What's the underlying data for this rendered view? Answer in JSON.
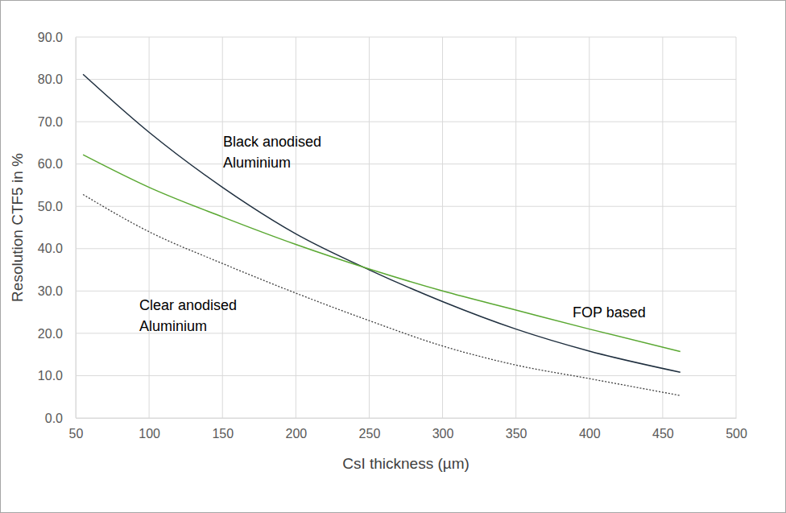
{
  "chart_data": {
    "type": "line",
    "x_label": "CsI thickness (µm)",
    "y_label": "Resolution CTF5 in %",
    "x": [
      55,
      100,
      150,
      200,
      250,
      300,
      350,
      400,
      462
    ],
    "series": [
      {
        "name": "Black anodised Aluminium",
        "color": "#1f2f3f",
        "line_style": "solid",
        "marker": "none",
        "values": [
          81.2,
          67.5,
          54.5,
          43.5,
          35.0,
          27.5,
          21.0,
          15.8,
          10.8
        ]
      },
      {
        "name": "FOP based",
        "color": "#5aa832",
        "line_style": "solid",
        "marker": "none",
        "values": [
          62.2,
          54.5,
          47.5,
          41.0,
          35.2,
          30.0,
          25.5,
          21.0,
          15.7
        ]
      },
      {
        "name": "Clear anodised Aluminium",
        "color": "#404040",
        "line_style": "dotted",
        "marker": "none",
        "values": [
          52.8,
          44.0,
          36.5,
          29.5,
          23.0,
          17.0,
          12.5,
          9.3,
          5.3
        ]
      }
    ],
    "xlim": [
      50,
      500
    ],
    "xticks": [
      50,
      100,
      150,
      200,
      250,
      300,
      350,
      400,
      450,
      500
    ],
    "ylim": [
      0,
      90
    ],
    "yticks": [
      {
        "value": 0,
        "label": "0.0"
      },
      {
        "value": 10,
        "label": "10.0"
      },
      {
        "value": 20,
        "label": "20.0"
      },
      {
        "value": 30,
        "label": "30.0"
      },
      {
        "value": 40,
        "label": "40.0"
      },
      {
        "value": 50,
        "label": "50.0"
      },
      {
        "value": 60,
        "label": "60.0"
      },
      {
        "value": 70,
        "label": "70.0"
      },
      {
        "value": 80,
        "label": "80.0"
      },
      {
        "value": 90,
        "label": "90.0"
      }
    ],
    "grid": true
  }
}
